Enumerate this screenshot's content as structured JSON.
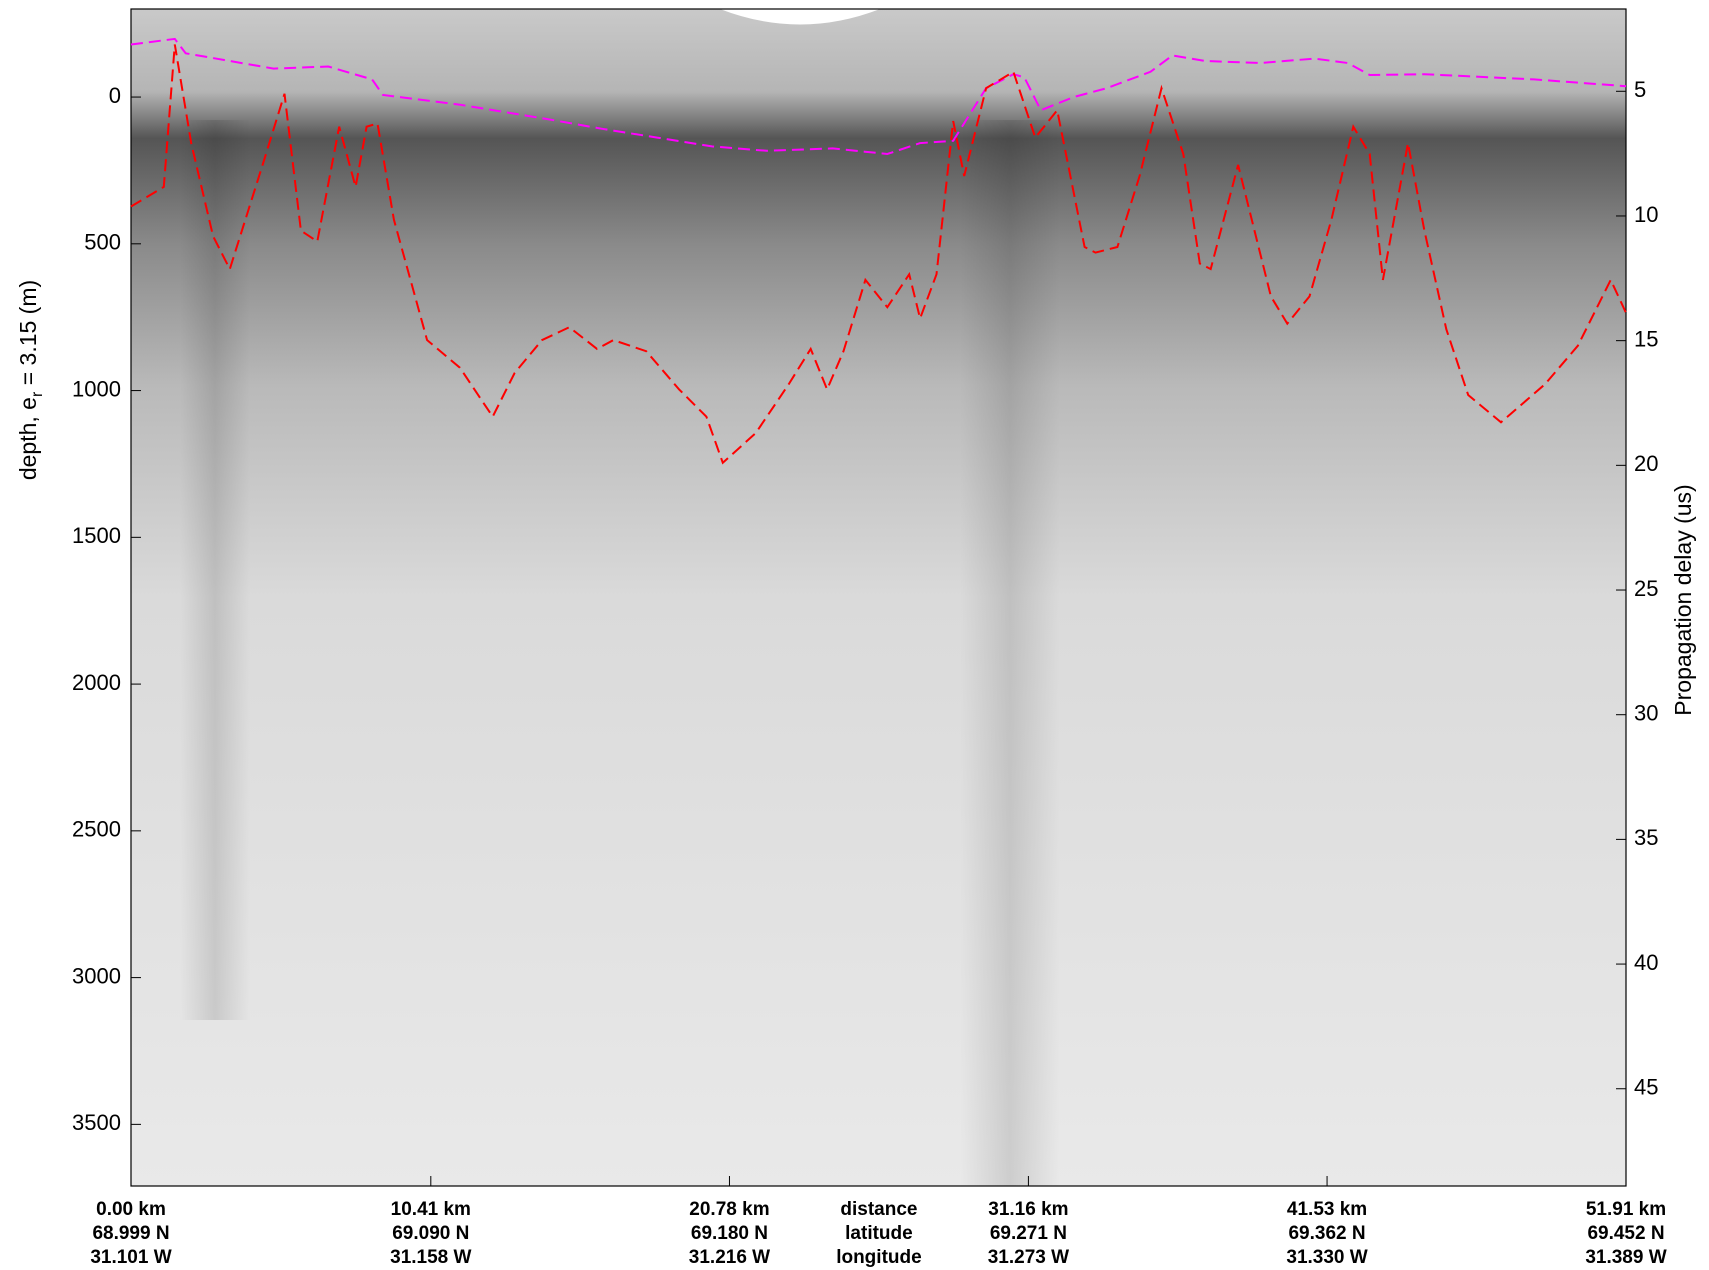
{
  "chart_data": {
    "type": "line",
    "ylabel": "depth, e",
    "ylabel_sub": "r",
    "ylabel_rest": " = 3.15 (m)",
    "y2label": "Propagation delay (us)",
    "xlim": [
      0,
      51.91
    ],
    "ylim": [
      -300,
      3710
    ],
    "y2lim": [
      1.7,
      48.9
    ],
    "yticks": [
      0,
      500,
      1000,
      1500,
      2000,
      2500,
      3000,
      3500
    ],
    "y2ticks": [
      5,
      10,
      15,
      20,
      25,
      30,
      35,
      40,
      45
    ],
    "xticks": [
      {
        "value": 0,
        "label": "0.00 km"
      },
      {
        "value": 10.41,
        "label": "10.41 km"
      },
      {
        "value": 20.78,
        "label": "20.78 km"
      },
      {
        "value": 31.16,
        "label": "31.16 km"
      },
      {
        "value": 41.53,
        "label": "41.53 km"
      },
      {
        "value": 51.91,
        "label": "51.91 km"
      }
    ],
    "latitude_labels": [
      "68.999 N",
      "69.090 N",
      "69.180 N",
      "69.271 N",
      "69.362 N",
      "69.452 N"
    ],
    "longitude_labels": [
      "31.101 W",
      "31.158 W",
      "31.216 W",
      "31.273 W",
      "31.330 W",
      "31.389 W"
    ],
    "row_labels": [
      "distance",
      "latitude",
      "longitude"
    ],
    "series": [
      {
        "color": "#ff00ff",
        "x": [
          0,
          1.52,
          1.9,
          4.95,
          6.85,
          8.37,
          8.75,
          11.42,
          14.46,
          16.36,
          18.27,
          20.17,
          22.07,
          24.36,
          26.26,
          27.4,
          28.55,
          29.69,
          30.64,
          31.02,
          31.59,
          32.73,
          33.88,
          35.4,
          36.16,
          37.3,
          39.2,
          41.1,
          42.25,
          43.01,
          44.91,
          48.72,
          51.91
        ],
        "values": [
          -179,
          -198,
          -149,
          -97,
          -104,
          -60,
          -7,
          26,
          75,
          108,
          138,
          168,
          183,
          175,
          194,
          157,
          149,
          -30,
          -78,
          -67,
          45,
          0,
          -30,
          -86,
          -142,
          -123,
          -116,
          -131,
          -116,
          -75,
          -78,
          -60,
          -37
        ]
      },
      {
        "color": "#ff0000",
        "x": [
          0,
          1.14,
          1.52,
          2.09,
          2.85,
          3.43,
          4.57,
          5.33,
          5.9,
          6.47,
          7.23,
          7.8,
          8.18,
          8.56,
          9.13,
          10.28,
          11.42,
          12.56,
          13.32,
          14.27,
          15.22,
          16.18,
          16.75,
          17.89,
          19.03,
          19.98,
          20.55,
          21.69,
          22.84,
          23.6,
          24.17,
          24.74,
          25.5,
          26.26,
          27.02,
          27.4,
          27.97,
          28.55,
          28.93,
          29.69,
          30.64,
          31.4,
          32.16,
          33.11,
          33.49,
          34.25,
          35.02,
          35.78,
          36.54,
          37.11,
          37.49,
          38.44,
          39.58,
          40.15,
          40.92,
          41.68,
          42.44,
          43.01,
          43.47,
          44.34,
          44.91,
          45.67,
          46.43,
          47.57,
          49.1,
          50.24,
          51.38,
          51.91
        ],
        "values": [
          373,
          306,
          -179,
          157,
          474,
          586,
          231,
          -11,
          455,
          492,
          101,
          306,
          101,
          90,
          418,
          828,
          922,
          1089,
          940,
          828,
          784,
          858,
          828,
          866,
          996,
          1089,
          1246,
          1145,
          978,
          858,
          996,
          866,
          623,
          716,
          604,
          754,
          604,
          82,
          269,
          -30,
          -86,
          138,
          45,
          511,
          530,
          511,
          269,
          -30,
          194,
          567,
          586,
          231,
          679,
          772,
          679,
          418,
          101,
          194,
          623,
          157,
          455,
          791,
          1015,
          1108,
          978,
          847,
          623,
          735
        ]
      }
    ]
  }
}
